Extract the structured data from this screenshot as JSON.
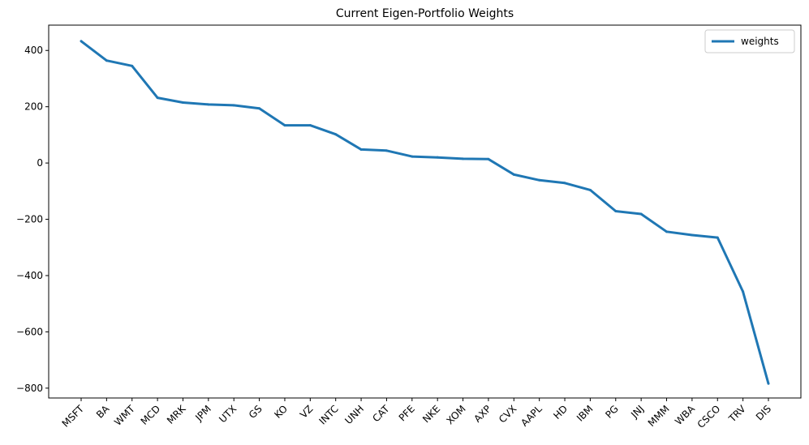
{
  "chart_data": {
    "type": "line",
    "title": "Current Eigen-Portfolio Weights",
    "xlabel": "",
    "ylabel": "",
    "categories": [
      "MSFT",
      "BA",
      "WMT",
      "MCD",
      "MRK",
      "JPM",
      "UTX",
      "GS",
      "KO",
      "VZ",
      "INTC",
      "UNH",
      "CAT",
      "PFE",
      "NKE",
      "XOM",
      "AXP",
      "CVX",
      "AAPL",
      "HD",
      "IBM",
      "PG",
      "JNJ",
      "MMM",
      "WBA",
      "CSCO",
      "TRV",
      "DIS"
    ],
    "series": [
      {
        "name": "weights",
        "color": "#1f77b4",
        "values": [
          433,
          364,
          345,
          232,
          215,
          208,
          205,
          194,
          134,
          134,
          102,
          48,
          44,
          23,
          20,
          15,
          14,
          -41,
          -61,
          -71,
          -96,
          -171,
          -181,
          -244,
          -256,
          -265,
          -457,
          -784
        ]
      }
    ],
    "ylim": [
      -835,
      490
    ],
    "yticks": [
      400,
      200,
      0,
      -200,
      -400,
      -600,
      -800
    ],
    "ytick_labels": [
      "400",
      "200",
      "0",
      "−200",
      "−400",
      "−600",
      "−800"
    ],
    "grid": false,
    "legend_position": "top-right"
  }
}
